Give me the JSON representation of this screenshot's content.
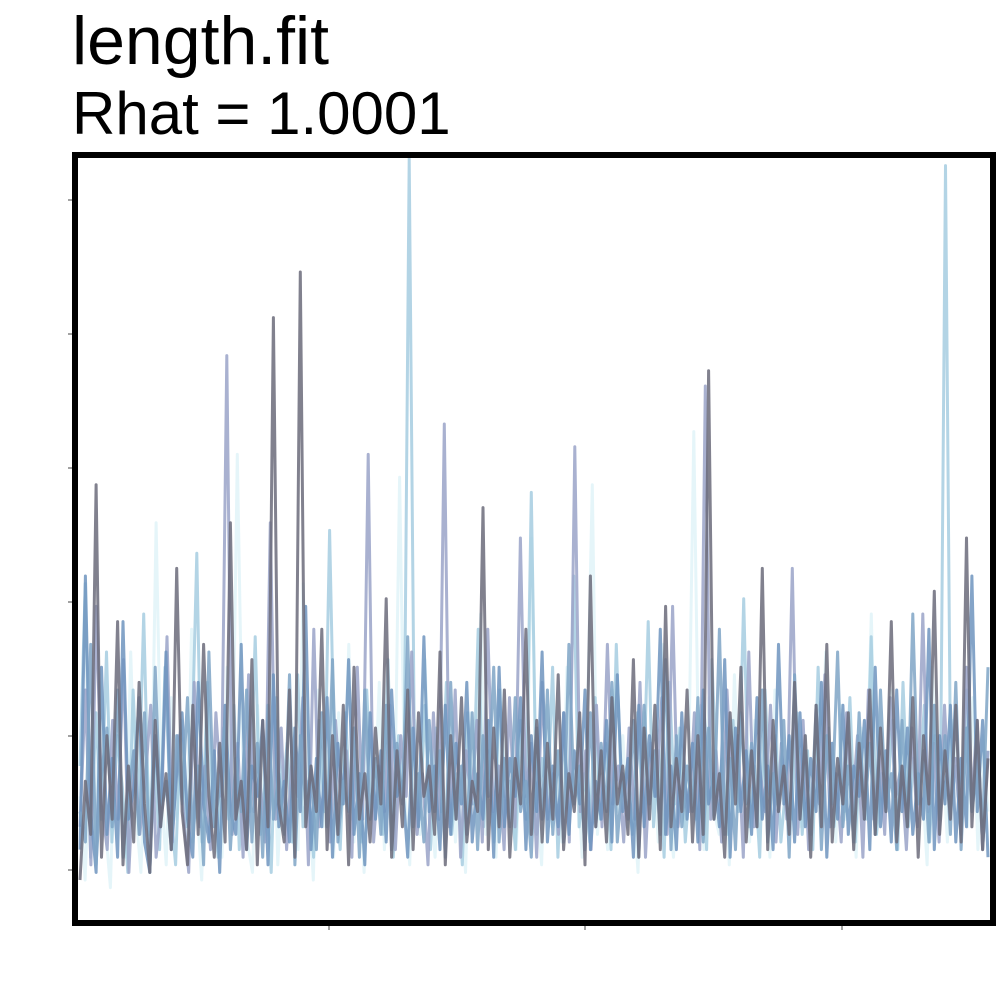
{
  "chart_data": {
    "type": "line",
    "title": "length.fit",
    "subtitle": "Rhat = 1.0001",
    "xlabel": "",
    "ylabel": "",
    "grid": false,
    "legend": "none",
    "n_iterations": 1000,
    "ylim": [
      0,
      1
    ],
    "chain_colors": [
      "#e0f3f8",
      "#a6cde0",
      "#9aa3c8",
      "#6f94be",
      "#7fa4c6",
      "#6b6b7a"
    ],
    "series": [
      {
        "color": "#e0f3f8",
        "values": [
          0.16,
          0.05,
          0.22,
          0.09,
          0.31,
          0.12,
          0.04,
          0.27,
          0.18,
          0.08,
          0.35,
          0.14,
          0.06,
          0.24,
          0.11,
          0.52,
          0.17,
          0.07,
          0.29,
          0.13,
          0.21,
          0.09,
          0.38,
          0.15,
          0.05,
          0.26,
          0.12,
          0.19,
          0.08,
          0.33,
          0.14,
          0.61,
          0.23,
          0.1,
          0.06,
          0.28,
          0.16,
          0.11,
          0.32,
          0.07,
          0.2,
          0.13,
          0.25,
          0.09,
          0.44,
          0.18,
          0.05,
          0.3,
          0.12,
          0.22,
          0.08,
          0.27,
          0.15,
          0.36,
          0.1,
          0.19,
          0.06,
          0.24,
          0.14,
          0.31,
          0.09,
          0.2,
          0.13,
          0.58,
          0.17,
          0.07,
          0.26,
          0.11,
          0.34,
          0.16,
          0.08,
          0.23,
          0.12,
          0.29,
          0.1,
          0.19,
          0.06,
          0.27,
          0.15,
          0.4,
          0.11,
          0.21,
          0.08,
          0.3,
          0.14,
          0.18,
          0.09,
          0.25,
          0.13,
          0.5,
          0.16,
          0.07,
          0.28,
          0.12,
          0.22,
          0.1,
          0.33,
          0.15,
          0.2,
          0.08,
          0.26,
          0.57,
          0.11,
          0.19,
          0.09,
          0.3,
          0.14,
          0.24,
          0.12,
          0.17,
          0.06,
          0.27,
          0.13,
          0.21,
          0.1,
          0.36,
          0.15,
          0.08,
          0.25,
          0.12,
          0.2,
          0.64,
          0.17,
          0.09,
          0.29,
          0.14,
          0.11,
          0.23,
          0.07,
          0.32,
          0.16,
          0.18,
          0.1,
          0.26,
          0.13,
          0.22,
          0.08,
          0.3,
          0.15,
          0.19,
          0.11,
          0.27,
          0.12,
          0.24,
          0.09,
          0.2,
          0.14,
          0.35,
          0.17,
          0.1,
          0.28,
          0.13,
          0.21,
          0.08,
          0.25,
          0.16,
          0.4,
          0.11,
          0.19,
          0.14,
          0.3,
          0.09,
          0.23,
          0.12,
          0.27,
          0.15,
          0.18,
          0.07,
          0.33,
          0.13,
          0.22,
          0.1,
          0.26,
          0.16,
          0.2,
          0.12,
          0.29,
          0.09,
          0.24,
          0.14
        ]
      },
      {
        "color": "#a6cde0",
        "values": [
          0.2,
          0.44,
          0.08,
          0.27,
          0.13,
          0.35,
          0.1,
          0.24,
          0.17,
          0.06,
          0.3,
          0.14,
          0.4,
          0.11,
          0.22,
          0.09,
          0.33,
          0.15,
          0.07,
          0.26,
          0.12,
          0.2,
          0.48,
          0.1,
          0.31,
          0.16,
          0.08,
          0.25,
          0.13,
          0.28,
          0.09,
          0.21,
          0.14,
          0.37,
          0.11,
          0.19,
          0.06,
          0.29,
          0.15,
          0.23,
          0.1,
          0.32,
          0.12,
          0.18,
          0.08,
          0.26,
          0.14,
          0.51,
          0.17,
          0.09,
          0.27,
          0.13,
          0.22,
          0.1,
          0.3,
          0.15,
          0.2,
          0.11,
          0.34,
          0.08,
          0.24,
          0.16,
          1.0,
          0.2,
          0.13,
          0.28,
          0.09,
          0.25,
          0.14,
          0.31,
          0.11,
          0.19,
          0.07,
          0.27,
          0.15,
          0.38,
          0.12,
          0.22,
          0.1,
          0.3,
          0.16,
          0.18,
          0.09,
          0.26,
          0.13,
          0.56,
          0.11,
          0.21,
          0.14,
          0.33,
          0.08,
          0.24,
          0.15,
          0.45,
          0.12,
          0.19,
          0.1,
          0.29,
          0.13,
          0.23,
          0.09,
          0.36,
          0.16,
          0.2,
          0.11,
          0.27,
          0.14,
          0.39,
          0.12,
          0.22,
          0.08,
          0.31,
          0.15,
          0.25,
          0.1,
          0.19,
          0.13,
          0.28,
          0.09,
          0.34,
          0.16,
          0.21,
          0.11,
          0.26,
          0.14,
          0.42,
          0.12,
          0.2,
          0.08,
          0.3,
          0.15,
          0.24,
          0.1,
          0.18,
          0.13,
          0.27,
          0.11,
          0.22,
          0.09,
          0.33,
          0.16,
          0.25,
          0.12,
          0.2,
          0.14,
          0.29,
          0.1,
          0.23,
          0.13,
          0.37,
          0.11,
          0.19,
          0.15,
          0.26,
          0.09,
          0.31,
          0.12,
          0.21,
          0.16,
          0.28,
          0.1,
          0.24,
          0.13,
          0.99,
          0.15,
          0.2,
          0.11,
          0.3,
          0.14,
          0.25,
          0.09,
          0.22
        ]
      },
      {
        "color": "#9aa3c8",
        "values": [
          0.12,
          0.3,
          0.07,
          0.41,
          0.15,
          0.09,
          0.26,
          0.13,
          0.34,
          0.06,
          0.22,
          0.11,
          0.18,
          0.28,
          0.08,
          0.15,
          0.37,
          0.1,
          0.24,
          0.14,
          0.06,
          0.31,
          0.12,
          0.2,
          0.09,
          0.27,
          0.16,
          0.74,
          0.11,
          0.23,
          0.08,
          0.32,
          0.14,
          0.19,
          0.1,
          0.52,
          0.13,
          0.25,
          0.09,
          0.21,
          0.16,
          0.29,
          0.07,
          0.38,
          0.12,
          0.18,
          0.1,
          0.26,
          0.15,
          0.22,
          0.08,
          0.33,
          0.13,
          0.61,
          0.1,
          0.2,
          0.14,
          0.28,
          0.09,
          0.24,
          0.16,
          0.35,
          0.11,
          0.19,
          0.07,
          0.27,
          0.13,
          0.65,
          0.12,
          0.3,
          0.08,
          0.22,
          0.15,
          0.26,
          0.1,
          0.38,
          0.14,
          0.2,
          0.09,
          0.29,
          0.12,
          0.5,
          0.16,
          0.23,
          0.08,
          0.31,
          0.13,
          0.19,
          0.11,
          0.27,
          0.1,
          0.62,
          0.14,
          0.22,
          0.09,
          0.28,
          0.12,
          0.36,
          0.15,
          0.2,
          0.1,
          0.25,
          0.13,
          0.31,
          0.08,
          0.23,
          0.16,
          0.29,
          0.11,
          0.41,
          0.12,
          0.19,
          0.14,
          0.27,
          0.09,
          0.7,
          0.13,
          0.22,
          0.1,
          0.3,
          0.15,
          0.24,
          0.08,
          0.35,
          0.12,
          0.2,
          0.14,
          0.28,
          0.1,
          0.23,
          0.13,
          0.46,
          0.11,
          0.26,
          0.09,
          0.21,
          0.15,
          0.32,
          0.12,
          0.19,
          0.1,
          0.27,
          0.14,
          0.24,
          0.08,
          0.3,
          0.13,
          0.22,
          0.11,
          0.29,
          0.16,
          0.2,
          0.09,
          0.25,
          0.12,
          0.4,
          0.14,
          0.23,
          0.1,
          0.28,
          0.13,
          0.21,
          0.11,
          0.33,
          0.15,
          0.26,
          0.09,
          0.22
        ]
      },
      {
        "color": "#6f94be",
        "values": [
          0.09,
          0.45,
          0.14,
          0.06,
          0.33,
          0.11,
          0.21,
          0.08,
          0.39,
          0.13,
          0.17,
          0.29,
          0.1,
          0.06,
          0.24,
          0.12,
          0.35,
          0.09,
          0.19,
          0.27,
          0.13,
          0.08,
          0.31,
          0.15,
          0.1,
          0.22,
          0.06,
          0.28,
          0.14,
          0.11,
          0.36,
          0.09,
          0.2,
          0.16,
          0.26,
          0.07,
          0.32,
          0.12,
          0.18,
          0.1,
          0.25,
          0.14,
          0.41,
          0.09,
          0.21,
          0.12,
          0.29,
          0.08,
          0.23,
          0.15,
          0.34,
          0.11,
          0.19,
          0.07,
          0.27,
          0.13,
          0.22,
          0.1,
          0.3,
          0.16,
          0.18,
          0.08,
          0.25,
          0.12,
          0.37,
          0.14,
          0.2,
          0.09,
          0.28,
          0.11,
          0.23,
          0.15,
          0.31,
          0.1,
          0.19,
          0.13,
          0.26,
          0.08,
          0.33,
          0.12,
          0.21,
          0.16,
          0.29,
          0.09,
          0.24,
          0.14,
          0.35,
          0.1,
          0.2,
          0.12,
          0.27,
          0.11,
          0.22,
          0.15,
          0.3,
          0.09,
          0.18,
          0.13,
          0.26,
          0.1,
          0.32,
          0.14,
          0.21,
          0.08,
          0.28,
          0.12,
          0.24,
          0.16,
          0.38,
          0.11,
          0.2,
          0.09,
          0.27,
          0.13,
          0.23,
          0.1,
          0.3,
          0.15,
          0.19,
          0.12,
          0.34,
          0.08,
          0.25,
          0.14,
          0.22,
          0.11,
          0.29,
          0.13,
          0.2,
          0.09,
          0.36,
          0.15,
          0.24,
          0.1,
          0.27,
          0.12,
          0.21,
          0.14,
          0.31,
          0.08,
          0.23,
          0.13,
          0.28,
          0.11,
          0.2,
          0.16,
          0.26,
          0.09,
          0.33,
          0.12,
          0.22,
          0.1,
          0.3,
          0.14,
          0.25,
          0.11,
          0.19,
          0.13,
          0.38,
          0.09,
          0.24,
          0.15,
          0.28,
          0.1,
          0.21,
          0.12,
          0.45,
          0.14,
          0.26,
          0.08
        ]
      },
      {
        "color": "#7fa4c6",
        "values": [
          0.14,
          0.1,
          0.36,
          0.07,
          0.19,
          0.25,
          0.12,
          0.3,
          0.08,
          0.16,
          0.22,
          0.11,
          0.27,
          0.06,
          0.33,
          0.13,
          0.18,
          0.09,
          0.24,
          0.15,
          0.29,
          0.1,
          0.2,
          0.07,
          0.35,
          0.12,
          0.17,
          0.26,
          0.09,
          0.21,
          0.14,
          0.3,
          0.1,
          0.23,
          0.08,
          0.28,
          0.13,
          0.19,
          0.11,
          0.32,
          0.07,
          0.24,
          0.15,
          0.2,
          0.09,
          0.27,
          0.12,
          0.34,
          0.1,
          0.18,
          0.14,
          0.25,
          0.08,
          0.3,
          0.13,
          0.21,
          0.11,
          0.28,
          0.09,
          0.23,
          0.15,
          0.37,
          0.12,
          0.19,
          0.1,
          0.26,
          0.14,
          0.22,
          0.08,
          0.31,
          0.13,
          0.2,
          0.11,
          0.27,
          0.09,
          0.24,
          0.16,
          0.33,
          0.1,
          0.21,
          0.12,
          0.29,
          0.14,
          0.18,
          0.08,
          0.25,
          0.13,
          0.3,
          0.11,
          0.22,
          0.1,
          0.36,
          0.15,
          0.2,
          0.09,
          0.27,
          0.12,
          0.23,
          0.14,
          0.31,
          0.1,
          0.19,
          0.13,
          0.26,
          0.08,
          0.28,
          0.15,
          0.22,
          0.11,
          0.34,
          0.09,
          0.24,
          0.12,
          0.2,
          0.14,
          0.29,
          0.1,
          0.25,
          0.13,
          0.38,
          0.11,
          0.21,
          0.09,
          0.27,
          0.15,
          0.23,
          0.12,
          0.3,
          0.1,
          0.19,
          0.14,
          0.26,
          0.08,
          0.32,
          0.13,
          0.22,
          0.11,
          0.28,
          0.09,
          0.24,
          0.15,
          0.35,
          0.12,
          0.2,
          0.1,
          0.27,
          0.13,
          0.23,
          0.11,
          0.3,
          0.14,
          0.19,
          0.09,
          0.26,
          0.12,
          0.4,
          0.15,
          0.22,
          0.1,
          0.28,
          0.13,
          0.24,
          0.11,
          0.31,
          0.09,
          0.25,
          0.14,
          0.2,
          0.12,
          0.33
        ]
      },
      {
        "color": "#6b6b7a",
        "values": [
          0.05,
          0.18,
          0.11,
          0.57,
          0.08,
          0.24,
          0.13,
          0.39,
          0.07,
          0.2,
          0.1,
          0.31,
          0.15,
          0.06,
          0.26,
          0.12,
          0.19,
          0.09,
          0.46,
          0.14,
          0.07,
          0.28,
          0.11,
          0.36,
          0.16,
          0.08,
          0.23,
          0.1,
          0.52,
          0.13,
          0.18,
          0.09,
          0.34,
          0.07,
          0.26,
          0.12,
          0.79,
          0.15,
          0.1,
          0.3,
          0.08,
          0.85,
          0.12,
          0.2,
          0.14,
          0.38,
          0.09,
          0.24,
          0.11,
          0.28,
          0.07,
          0.33,
          0.13,
          0.19,
          0.1,
          0.25,
          0.15,
          0.42,
          0.08,
          0.22,
          0.12,
          0.3,
          0.09,
          0.27,
          0.16,
          0.2,
          0.11,
          0.35,
          0.07,
          0.24,
          0.13,
          0.29,
          0.1,
          0.18,
          0.14,
          0.54,
          0.09,
          0.25,
          0.12,
          0.3,
          0.08,
          0.21,
          0.15,
          0.38,
          0.11,
          0.26,
          0.1,
          0.23,
          0.13,
          0.32,
          0.09,
          0.19,
          0.14,
          0.27,
          0.07,
          0.45,
          0.12,
          0.22,
          0.1,
          0.29,
          0.15,
          0.2,
          0.11,
          0.34,
          0.08,
          0.25,
          0.13,
          0.28,
          0.09,
          0.41,
          0.12,
          0.21,
          0.14,
          0.3,
          0.1,
          0.24,
          0.11,
          0.72,
          0.13,
          0.19,
          0.08,
          0.27,
          0.15,
          0.33,
          0.1,
          0.22,
          0.12,
          0.46,
          0.09,
          0.26,
          0.14,
          0.2,
          0.11,
          0.31,
          0.13,
          0.24,
          0.08,
          0.28,
          0.12,
          0.36,
          0.1,
          0.21,
          0.15,
          0.27,
          0.09,
          0.23,
          0.13,
          0.3,
          0.11,
          0.25,
          0.14,
          0.39,
          0.1,
          0.2,
          0.12,
          0.29,
          0.08,
          0.24,
          0.15,
          0.43,
          0.11,
          0.22,
          0.13,
          0.28,
          0.1,
          0.5,
          0.12,
          0.26,
          0.09,
          0.21
        ]
      }
    ]
  }
}
